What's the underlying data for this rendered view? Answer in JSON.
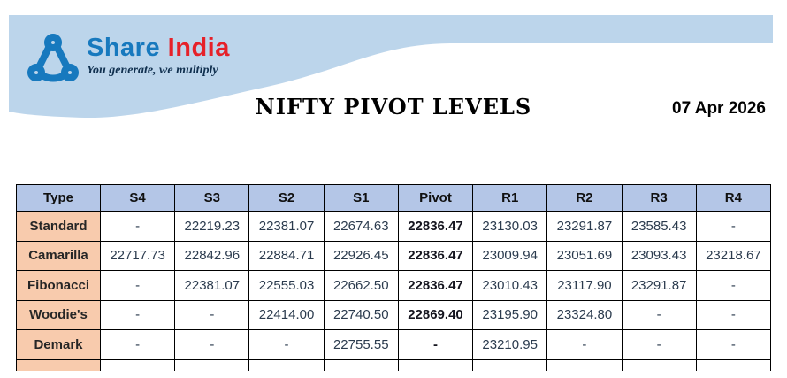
{
  "brand": {
    "name_part1": "Share",
    "name_part2": "India",
    "tagline": "You generate, we multiply",
    "blue": "#1779be",
    "red": "#e62129"
  },
  "header": {
    "title": "NIFTY PIVOT LEVELS",
    "date": "07 Apr 2026",
    "band_color": "#bcd5eb"
  },
  "table": {
    "header_bg": "#b4c6e7",
    "type_col_bg": "#f8cbad",
    "pivot_column": "Pivot",
    "columns": [
      "Type",
      "S4",
      "S3",
      "S2",
      "S1",
      "Pivot",
      "R1",
      "R2",
      "R3",
      "R4"
    ],
    "rows": [
      {
        "type": "Standard",
        "values": [
          "-",
          "22219.23",
          "22381.07",
          "22674.63",
          "22836.47",
          "23130.03",
          "23291.87",
          "23585.43",
          "-"
        ]
      },
      {
        "type": "Camarilla",
        "values": [
          "22717.73",
          "22842.96",
          "22884.71",
          "22926.45",
          "22836.47",
          "23009.94",
          "23051.69",
          "23093.43",
          "23218.67"
        ]
      },
      {
        "type": "Fibonacci",
        "values": [
          "-",
          "22381.07",
          "22555.03",
          "22662.50",
          "22836.47",
          "23010.43",
          "23117.90",
          "23291.87",
          "-"
        ]
      },
      {
        "type": "Woodie's",
        "values": [
          "-",
          "-",
          "22414.00",
          "22740.50",
          "22869.40",
          "23195.90",
          "23324.80",
          "-",
          "-"
        ]
      },
      {
        "type": "Demark",
        "values": [
          "-",
          "-",
          "-",
          "22755.55",
          "-",
          "23210.95",
          "-",
          "-",
          "-"
        ]
      }
    ]
  },
  "chart_data": {
    "type": "table",
    "title": "NIFTY PIVOT LEVELS",
    "date": "07 Apr 2026",
    "columns": [
      "Type",
      "S4",
      "S3",
      "S2",
      "S1",
      "Pivot",
      "R1",
      "R2",
      "R3",
      "R4"
    ],
    "rows": [
      [
        "Standard",
        null,
        22219.23,
        22381.07,
        22674.63,
        22836.47,
        23130.03,
        23291.87,
        23585.43,
        null
      ],
      [
        "Camarilla",
        22717.73,
        22842.96,
        22884.71,
        22926.45,
        22836.47,
        23009.94,
        23051.69,
        23093.43,
        23218.67
      ],
      [
        "Fibonacci",
        null,
        22381.07,
        22555.03,
        22662.5,
        22836.47,
        23010.43,
        23117.9,
        23291.87,
        null
      ],
      [
        "Woodie's",
        null,
        null,
        22414.0,
        22740.5,
        22869.4,
        23195.9,
        23324.8,
        null,
        null
      ],
      [
        "Demark",
        null,
        null,
        null,
        22755.55,
        null,
        23210.95,
        null,
        null,
        null
      ]
    ]
  }
}
